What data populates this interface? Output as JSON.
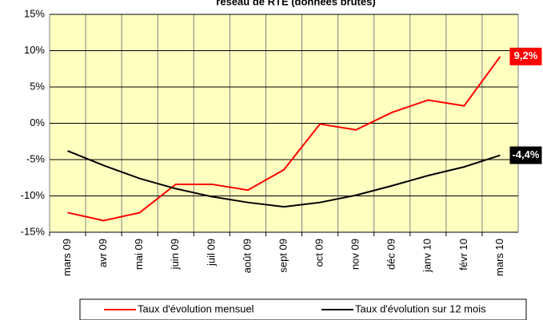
{
  "chart_data": {
    "type": "line",
    "title": "réseau de RTE (données brutes)",
    "categories": [
      "mars 09",
      "avr 09",
      "mai 09",
      "juin 09",
      "juil 09",
      "août 09",
      "sept 09",
      "oct 09",
      "nov 09",
      "déc 09",
      "janv 10",
      "févr 10",
      "mars 10"
    ],
    "series": [
      {
        "name": "Taux d'évolution mensuel",
        "color": "#ff0000",
        "values": [
          -12.3,
          -13.4,
          -12.3,
          -8.4,
          -8.4,
          -9.2,
          -6.4,
          -0.1,
          -0.9,
          1.5,
          3.2,
          2.4,
          9.2
        ],
        "value_labels": [
          null,
          null,
          null,
          null,
          null,
          null,
          null,
          null,
          null,
          null,
          null,
          null,
          "9,2%"
        ]
      },
      {
        "name": "Taux d'évolution sur 12 mois",
        "color": "#000000",
        "values": [
          -3.8,
          -5.8,
          -7.6,
          -9.0,
          -10.1,
          -10.9,
          -11.5,
          -10.9,
          -9.9,
          -8.6,
          -7.2,
          -6.0,
          -4.4
        ],
        "value_labels": [
          null,
          null,
          null,
          null,
          null,
          null,
          null,
          null,
          null,
          null,
          null,
          null,
          "-4,4%"
        ]
      }
    ],
    "ylim": [
      -15,
      15
    ],
    "yticks": [
      {
        "value": -15,
        "label": "-15%"
      },
      {
        "value": -10,
        "label": "-10%"
      },
      {
        "value": -5,
        "label": "-5%"
      },
      {
        "value": 0,
        "label": "0%"
      },
      {
        "value": 5,
        "label": "5%"
      },
      {
        "value": 10,
        "label": "10%"
      },
      {
        "value": 15,
        "label": "15%"
      }
    ],
    "grid": true,
    "plot_background": "#ffffc0",
    "legend": "bottom"
  }
}
